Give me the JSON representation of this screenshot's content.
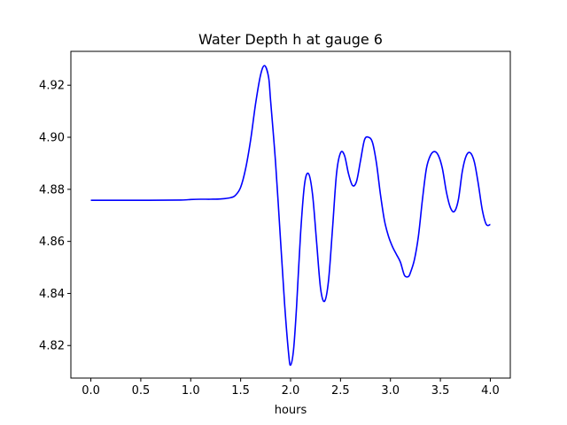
{
  "chart_data": {
    "type": "line",
    "title": "Water Depth h at gauge 6",
    "xlabel": "hours",
    "ylabel": "",
    "xlim": [
      -0.2,
      4.2
    ],
    "ylim": [
      4.8075,
      4.933
    ],
    "x_ticks": [
      "0.0",
      "0.5",
      "1.0",
      "1.5",
      "2.0",
      "2.5",
      "3.0",
      "3.5",
      "4.0"
    ],
    "x_tick_values": [
      0.0,
      0.5,
      1.0,
      1.5,
      2.0,
      2.5,
      3.0,
      3.5,
      4.0
    ],
    "y_ticks": [
      "4.82",
      "4.84",
      "4.86",
      "4.88",
      "4.90",
      "4.92"
    ],
    "y_tick_values": [
      4.82,
      4.84,
      4.86,
      4.88,
      4.9,
      4.92
    ],
    "grid": false,
    "line_color": "#0000ff",
    "series": [
      {
        "x": [
          0.0,
          0.5,
          0.9,
          1.0,
          1.1,
          1.2,
          1.3,
          1.4,
          1.45,
          1.5,
          1.55,
          1.6,
          1.65,
          1.7,
          1.74,
          1.78,
          1.8,
          1.85,
          1.9,
          1.94,
          1.98,
          2.0,
          2.03,
          2.06,
          2.1,
          2.14,
          2.18,
          2.22,
          2.26,
          2.3,
          2.34,
          2.38,
          2.42,
          2.46,
          2.5,
          2.54,
          2.58,
          2.62,
          2.66,
          2.7,
          2.74,
          2.78,
          2.82,
          2.86,
          2.9,
          2.94,
          2.98,
          3.02,
          3.06,
          3.1,
          3.14,
          3.18,
          3.2,
          3.24,
          3.28,
          3.32,
          3.36,
          3.4,
          3.44,
          3.48,
          3.52,
          3.56,
          3.6,
          3.64,
          3.68,
          3.72,
          3.76,
          3.8,
          3.84,
          3.88,
          3.92,
          3.96,
          4.0
        ],
        "values": [
          4.8758,
          4.8758,
          4.8759,
          4.8761,
          4.8762,
          4.8762,
          4.8763,
          4.8768,
          4.8778,
          4.8808,
          4.888,
          4.899,
          4.913,
          4.924,
          4.9275,
          4.923,
          4.914,
          4.89,
          4.86,
          4.836,
          4.817,
          4.8125,
          4.8185,
          4.835,
          4.863,
          4.882,
          4.886,
          4.878,
          4.86,
          4.842,
          4.837,
          4.845,
          4.865,
          4.886,
          4.894,
          4.893,
          4.886,
          4.8815,
          4.883,
          4.891,
          4.899,
          4.9,
          4.898,
          4.89,
          4.878,
          4.868,
          4.862,
          4.858,
          4.855,
          4.852,
          4.847,
          4.8465,
          4.848,
          4.853,
          4.862,
          4.876,
          4.888,
          4.893,
          4.8945,
          4.893,
          4.888,
          4.879,
          4.873,
          4.8715,
          4.876,
          4.887,
          4.893,
          4.894,
          4.8905,
          4.882,
          4.872,
          4.8665,
          4.8665
        ]
      }
    ]
  }
}
